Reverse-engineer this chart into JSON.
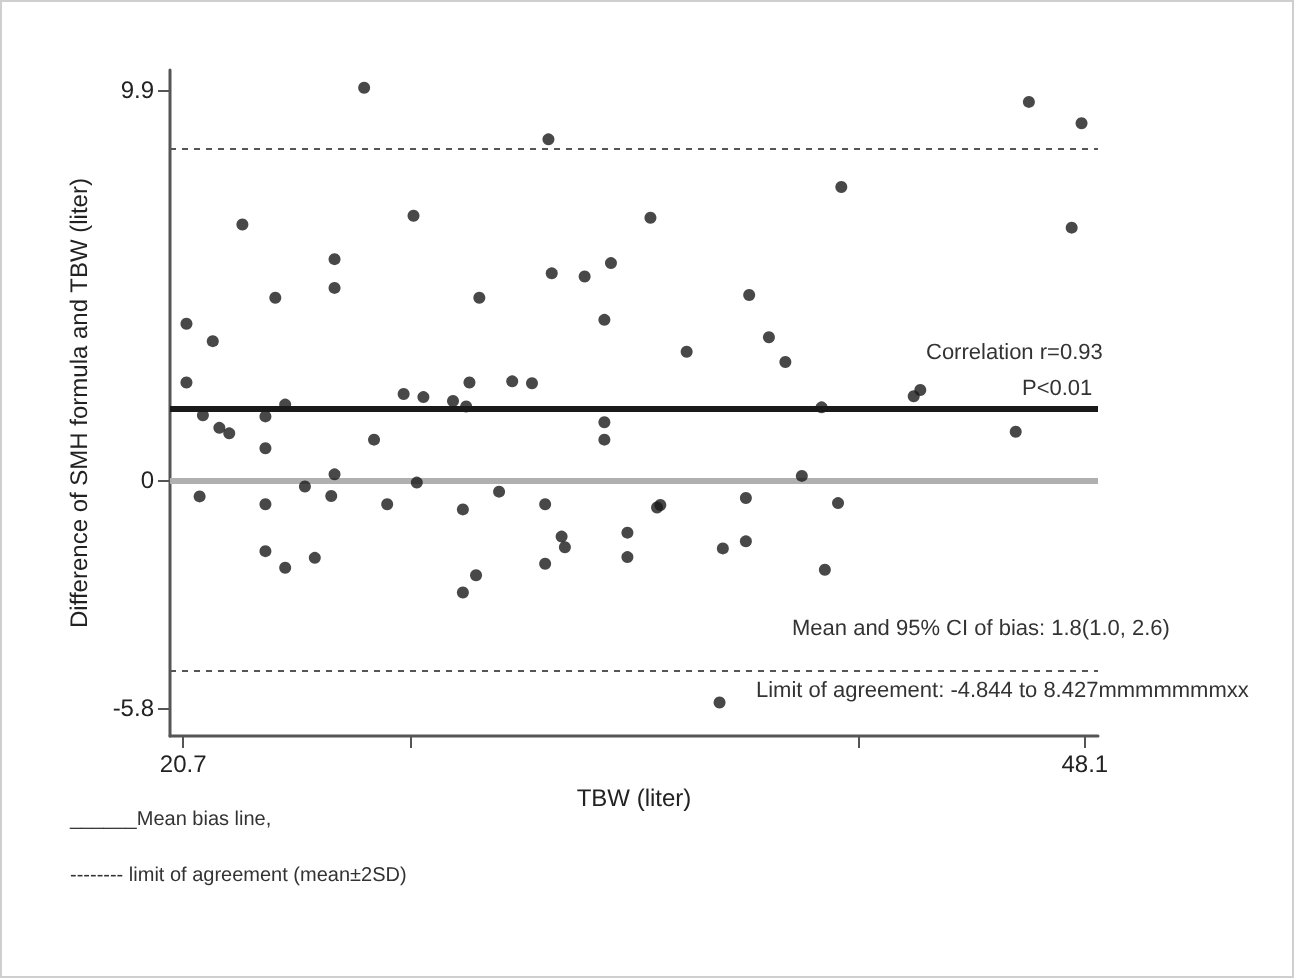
{
  "chart_data": {
    "type": "scatter",
    "xlabel": "TBW (liter)",
    "ylabel": "Difference of SMH formula and TBW (liter)",
    "x": [
      20.8,
      20.8,
      21.6,
      21.3,
      21.2,
      21.8,
      22.1,
      22.5,
      23.2,
      23.2,
      23.2,
      23.2,
      23.5,
      23.8,
      23.8,
      24.4,
      24.7,
      25.3,
      25.3,
      25.3,
      25.2,
      26.2,
      26.5,
      26.9,
      27.4,
      27.7,
      27.8,
      28.0,
      28.9,
      29.3,
      29.4,
      29.2,
      29.2,
      29.6,
      29.7,
      30.3,
      30.7,
      31.3,
      31.7,
      31.7,
      31.8,
      31.9,
      32.2,
      32.3,
      32.9,
      33.5,
      33.7,
      33.5,
      33.5,
      34.2,
      34.2,
      34.9,
      35.2,
      35.1,
      36.0,
      37.1,
      37.0,
      37.8,
      37.8,
      37.9,
      38.5,
      39.0,
      39.5,
      40.1,
      40.2,
      40.6,
      40.7,
      42.9,
      43.1,
      46.0,
      46.4,
      47.7,
      48.0
    ],
    "values": [
      3.96,
      2.47,
      3.52,
      1.64,
      -0.42,
      1.32,
      1.18,
      6.48,
      1.61,
      0.8,
      -0.62,
      -1.81,
      4.62,
      1.91,
      -2.23,
      -0.17,
      -1.98,
      5.6,
      4.87,
      0.14,
      -0.41,
      9.95,
      1.02,
      -0.62,
      2.18,
      6.7,
      -0.07,
      2.1,
      2.0,
      1.86,
      2.47,
      -0.75,
      -2.86,
      -2.42,
      4.62,
      -0.3,
      2.5,
      2.45,
      -0.62,
      -2.13,
      8.64,
      5.24,
      -1.44,
      -1.71,
      5.16,
      4.06,
      5.5,
      1.46,
      1.02,
      -1.34,
      -1.96,
      6.65,
      -0.64,
      -0.7,
      3.25,
      -1.74,
      -5.65,
      -1.56,
      -0.46,
      4.69,
      3.62,
      2.99,
      0.1,
      1.84,
      -2.28,
      -0.59,
      7.43,
      2.12,
      2.28,
      1.22,
      9.59,
      6.4,
      9.05
    ],
    "color": "#1a1a1a",
    "marker": "circle",
    "xlim": [
      20.3,
      48.5
    ],
    "xticks": [
      20.7,
      {
        "value": 27.6,
        "label": null
      },
      {
        "value": 41.2,
        "label": null
      },
      48.1
    ],
    "ylim": [
      -6.5,
      10.4
    ],
    "yticks": [
      -5.8,
      0,
      9.9
    ],
    "grid": false,
    "ref_lines": [
      {
        "axis": "y",
        "value": 1.8,
        "color": "#1a1a1a",
        "line_style": "solid"
      },
      {
        "axis": "y",
        "value": 0,
        "color": "#b0b0b0",
        "line_style": "solid"
      },
      {
        "axis": "y",
        "value": 8.427,
        "color": "#555555",
        "line_style": "dashed"
      },
      {
        "axis": "y",
        "value": -4.844,
        "color": "#555555",
        "line_style": "dashed"
      }
    ],
    "annotations": [
      "Correlation r=0.93",
      "P<0.01",
      "Mean and 95% CI of bias: 1.8(1.0, 2.6)",
      "Limit of agreement: -4.844 to 8.427mmmmmmmxx",
      "______Mean bias line,",
      "-------- limit of agreement (mean±2SD)"
    ]
  }
}
